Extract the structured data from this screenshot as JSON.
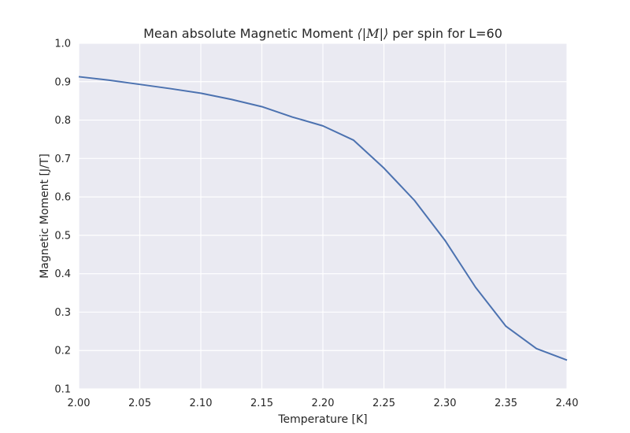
{
  "chart_data": {
    "type": "line",
    "title_prefix": "Mean absolute Magnetic Moment ",
    "title_math": "⟨|M|⟩",
    "title_suffix": " per spin for L=60",
    "xlabel": "Temperature [K]",
    "ylabel": "Magnetic Moment [J/T]",
    "xlim": [
      2.0,
      2.4
    ],
    "ylim": [
      0.1,
      1.0
    ],
    "xticks": [
      "2.00",
      "2.05",
      "2.10",
      "2.15",
      "2.20",
      "2.25",
      "2.30",
      "2.35",
      "2.40"
    ],
    "yticks": [
      "0.1",
      "0.2",
      "0.3",
      "0.4",
      "0.5",
      "0.6",
      "0.7",
      "0.8",
      "0.9",
      "1.0"
    ],
    "grid": true,
    "colors": {
      "background": "#eaeaf2",
      "grid": "#ffffff",
      "line": "#4c72b0"
    },
    "series": [
      {
        "x": [
          2.0,
          2.025,
          2.05,
          2.075,
          2.1,
          2.125,
          2.15,
          2.175,
          2.2,
          2.225,
          2.25,
          2.275,
          2.3,
          2.325,
          2.35,
          2.375,
          2.4
        ],
        "values": [
          0.913,
          0.904,
          0.893,
          0.882,
          0.87,
          0.854,
          0.835,
          0.808,
          0.785,
          0.748,
          0.675,
          0.591,
          0.487,
          0.365,
          0.263,
          0.205,
          0.175
        ]
      }
    ]
  }
}
